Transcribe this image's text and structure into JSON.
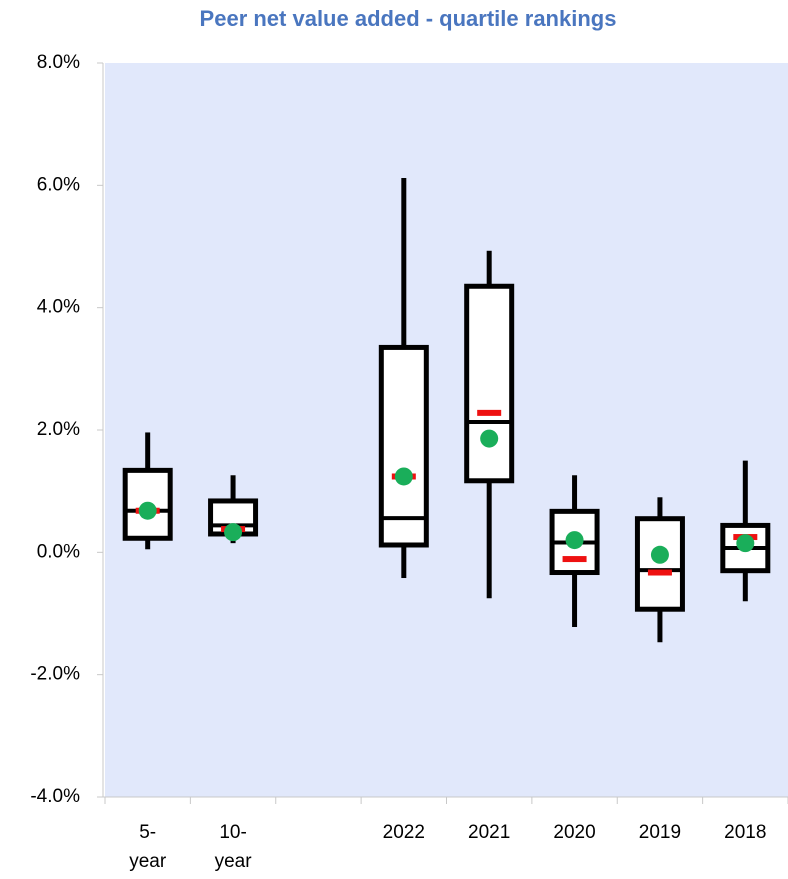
{
  "chart_data": {
    "type": "box",
    "title": "Peer net value added - quartile rankings",
    "categories": [
      "5-year",
      "10-year",
      null,
      "2022",
      "2021",
      "2020",
      "2019",
      "2018"
    ],
    "min": [
      0.05,
      0.15,
      null,
      -0.42,
      -0.75,
      -1.22,
      -1.47,
      -0.8
    ],
    "q1": [
      0.23,
      0.3,
      null,
      0.12,
      1.17,
      -0.33,
      -0.93,
      -0.3
    ],
    "median": [
      0.68,
      0.44,
      null,
      0.56,
      2.13,
      0.16,
      -0.29,
      0.07
    ],
    "q3": [
      1.34,
      0.84,
      null,
      3.35,
      4.35,
      0.67,
      0.55,
      0.44
    ],
    "max": [
      1.96,
      1.26,
      null,
      6.12,
      4.93,
      1.26,
      0.9,
      1.5
    ],
    "mean": [
      0.68,
      0.33,
      null,
      1.24,
      1.86,
      0.2,
      -0.04,
      0.15
    ],
    "marker": [
      0.68,
      0.38,
      null,
      1.24,
      2.28,
      -0.11,
      -0.33,
      0.25
    ],
    "box_color": "#000000",
    "mean_color": "#1aae5a",
    "marker_color": "#ee1111",
    "background": "#e1e8fb",
    "ylim": [
      -4,
      8
    ],
    "yticks": [
      {
        "value": -4,
        "label": "-4.0%"
      },
      {
        "value": -2,
        "label": "-2.0%"
      },
      {
        "value": 0,
        "label": "0.0%"
      },
      {
        "value": 2,
        "label": "2.0%"
      },
      {
        "value": 4,
        "label": "4.0%"
      },
      {
        "value": 6,
        "label": "6.0%"
      },
      {
        "value": 8,
        "label": "8.0%"
      }
    ]
  }
}
